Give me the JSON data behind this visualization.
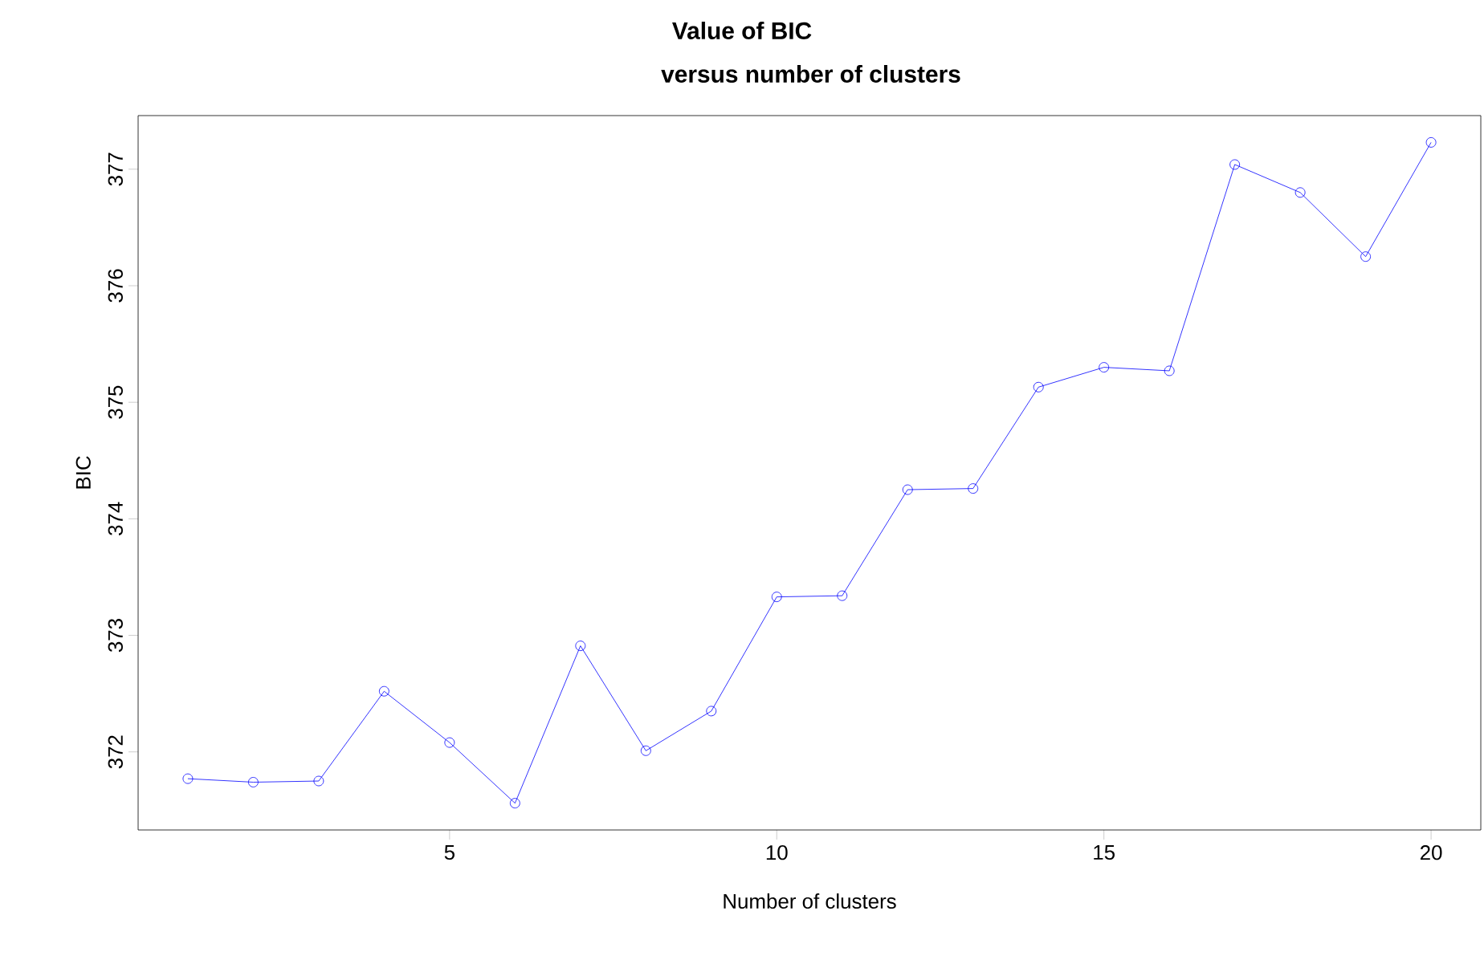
{
  "chart_data": {
    "type": "line",
    "title": "Value of BIC",
    "subtitle": "versus number of clusters",
    "xlabel": "Number of clusters",
    "ylabel": "BIC",
    "x": [
      1,
      2,
      3,
      4,
      5,
      6,
      7,
      8,
      9,
      10,
      11,
      12,
      13,
      14,
      15,
      16,
      17,
      18,
      19,
      20
    ],
    "values": [
      371.77,
      371.74,
      371.75,
      372.52,
      372.08,
      371.56,
      372.91,
      372.01,
      372.35,
      373.33,
      373.34,
      374.25,
      374.26,
      375.13,
      375.3,
      375.27,
      377.04,
      376.8,
      376.25,
      377.23
    ],
    "color": "#0000ff",
    "marker": "circle",
    "line_style": "solid",
    "xlim": [
      0.24,
      20.76
    ],
    "ylim": [
      371.33,
      377.46
    ],
    "xticks": [
      5,
      10,
      15,
      20
    ],
    "yticks": [
      372,
      373,
      374,
      375,
      376,
      377
    ]
  }
}
